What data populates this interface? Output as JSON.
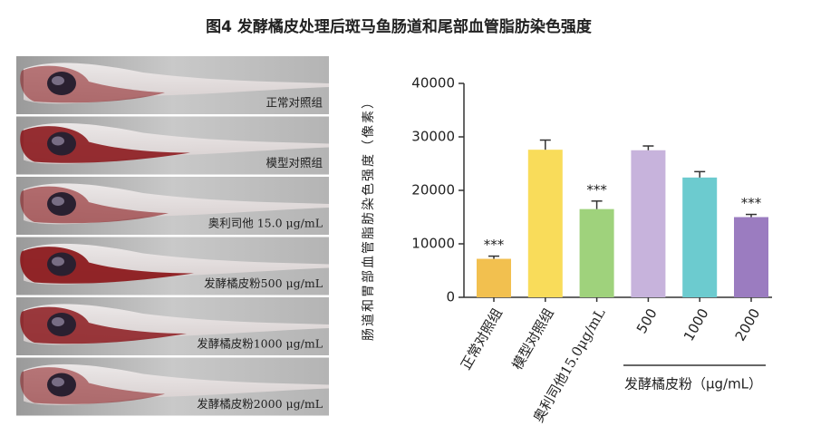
{
  "header": {
    "title": "图4 发酵橘皮处理后斑马鱼肠道和尾部血管脂肪染色强度"
  },
  "panels": [
    {
      "label": "正常对照组"
    },
    {
      "label": "模型对照组"
    },
    {
      "label": "奥利司他 15.0 μg/mL"
    },
    {
      "label": "发酵橘皮粉500 μg/mL"
    },
    {
      "label": "发酵橘皮粉1000 μg/mL"
    },
    {
      "label": "发酵橘皮粉2000 μg/mL"
    }
  ],
  "chart_data": {
    "type": "bar",
    "y_label": "肠道和胃部血管脂肪染色强度（像素）",
    "categories": [
      "正常对照组",
      "模型对照组",
      "奥利司他15.0μg/mL",
      "500",
      "1000",
      "2000"
    ],
    "group_label": "发酵橘皮粉（μg/mL）",
    "values": [
      7200,
      27600,
      16500,
      27500,
      22400,
      15000
    ],
    "errors": [
      500,
      1800,
      1500,
      800,
      1100,
      500
    ],
    "significance": [
      "***",
      null,
      "***",
      null,
      null,
      "***"
    ],
    "colors": [
      "#f2c04f",
      "#f9dc5a",
      "#9fd27c",
      "#c7b3dc",
      "#6ccbcf",
      "#9b7cc0"
    ],
    "ylim": [
      0,
      40000
    ],
    "yticks": [
      0,
      10000,
      20000,
      30000,
      40000
    ]
  }
}
